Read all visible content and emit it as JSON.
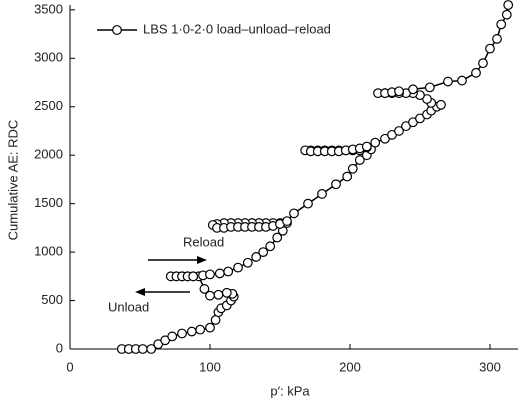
{
  "chart_data": {
    "type": "line",
    "xlabel": "p′: kPa",
    "ylabel": "Cumulative AE: RDC",
    "annotations": [
      "Reload",
      "Unload"
    ],
    "xlim": [
      0,
      320
    ],
    "xticks": [
      0,
      100,
      200,
      300
    ],
    "ylim": [
      0,
      3550
    ],
    "yticks": [
      0,
      500,
      1000,
      1500,
      2000,
      2500,
      3000,
      3500
    ],
    "legend": "upper left",
    "series": [
      {
        "name": "LBS 1·0-2·0 load–unload–reload",
        "color": "#000000",
        "x": [
          37,
          42,
          47,
          52,
          58,
          63,
          68,
          73,
          80,
          87,
          93,
          100,
          104,
          106,
          108,
          112,
          115,
          117,
          116,
          112,
          106,
          100,
          96,
          92,
          88,
          84,
          80,
          76,
          72,
          76,
          80,
          84,
          88,
          95,
          100,
          107,
          113,
          120,
          127,
          133,
          138,
          143,
          148,
          152,
          155,
          150,
          145,
          140,
          135,
          130,
          125,
          120,
          115,
          110,
          105,
          102,
          105,
          110,
          115,
          120,
          125,
          130,
          135,
          140,
          145,
          150,
          155,
          160,
          170,
          180,
          190,
          198,
          202,
          207,
          212,
          215,
          212,
          207,
          202,
          197,
          192,
          187,
          182,
          177,
          172,
          168,
          172,
          177,
          182,
          187,
          192,
          197,
          202,
          207,
          212,
          218,
          225,
          230,
          235,
          240,
          245,
          250,
          255,
          258,
          262,
          265,
          258,
          255,
          250,
          245,
          240,
          235,
          230,
          225,
          220,
          225,
          230,
          235,
          245,
          257,
          270,
          280,
          290,
          295,
          300,
          305,
          308,
          312,
          313
        ],
        "values": [
          0,
          0,
          0,
          0,
          0,
          50,
          90,
          130,
          160,
          180,
          200,
          220,
          300,
          380,
          420,
          450,
          500,
          540,
          570,
          580,
          560,
          550,
          620,
          750,
          750,
          750,
          750,
          750,
          750,
          750,
          750,
          750,
          750,
          760,
          770,
          780,
          800,
          840,
          890,
          950,
          1000,
          1060,
          1150,
          1220,
          1300,
          1300,
          1300,
          1300,
          1300,
          1300,
          1300,
          1300,
          1300,
          1300,
          1290,
          1280,
          1250,
          1250,
          1260,
          1260,
          1260,
          1260,
          1260,
          1260,
          1270,
          1290,
          1320,
          1400,
          1500,
          1600,
          1700,
          1780,
          1860,
          1950,
          2000,
          2060,
          2080,
          2050,
          2050,
          2050,
          2050,
          2050,
          2050,
          2050,
          2050,
          2050,
          2040,
          2040,
          2040,
          2040,
          2040,
          2050,
          2060,
          2070,
          2090,
          2130,
          2170,
          2210,
          2250,
          2300,
          2340,
          2380,
          2420,
          2460,
          2500,
          2520,
          2540,
          2580,
          2620,
          2640,
          2640,
          2640,
          2640,
          2640,
          2640,
          2640,
          2650,
          2660,
          2680,
          2700,
          2760,
          2770,
          2850,
          2950,
          3100,
          3200,
          3350,
          3450,
          3550
        ]
      }
    ]
  }
}
